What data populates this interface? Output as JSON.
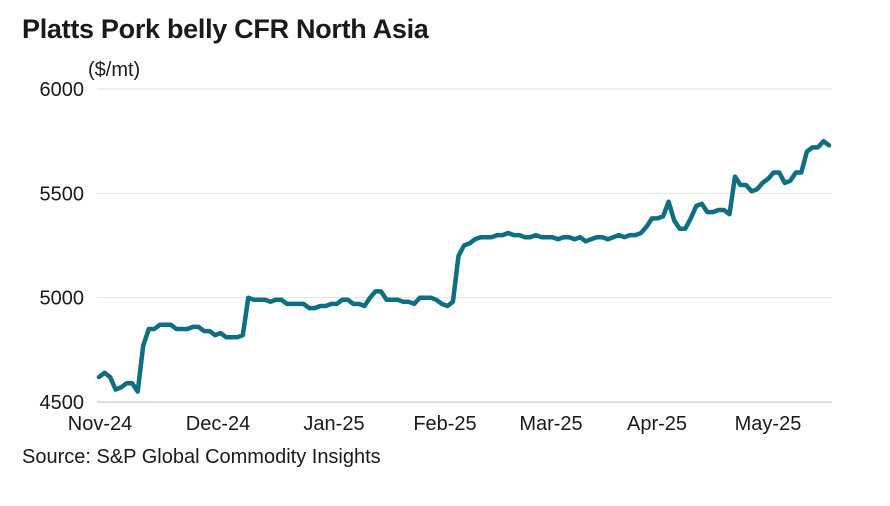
{
  "title": "Platts Pork belly CFR North Asia",
  "source": "Source: S&P Global Commodity Insights",
  "colors": {
    "line": "#0e6e82",
    "grid": "#e3e3e3",
    "axis": "#bdbdbd"
  },
  "chart_data": {
    "type": "line",
    "title": "Platts Pork belly CFR North Asia",
    "ylabel": "($/mt)",
    "xlabel": "",
    "ylim": [
      4500,
      6000
    ],
    "yticks": [
      4500,
      5000,
      5500,
      6000
    ],
    "xticks": [
      "Nov-24",
      "Dec-24",
      "Jan-25",
      "Feb-25",
      "Mar-25",
      "Apr-25",
      "May-25"
    ],
    "grid": true,
    "series": [
      {
        "values": [
          4620,
          4640,
          4620,
          4560,
          4570,
          4590,
          4590,
          4550,
          4770,
          4850,
          4850,
          4870,
          4870,
          4870,
          4850,
          4850,
          4850,
          4860,
          4860,
          4840,
          4840,
          4820,
          4830,
          4810,
          4810,
          4810,
          4820,
          5000,
          4990,
          4990,
          4990,
          4980,
          4990,
          4990,
          4970,
          4970,
          4970,
          4970,
          4950,
          4950,
          4960,
          4960,
          4970,
          4970,
          4990,
          4990,
          4970,
          4970,
          4960,
          5000,
          5030,
          5030,
          4990,
          4990,
          4990,
          4980,
          4980,
          4970,
          5000,
          5000,
          5000,
          4990,
          4970,
          4960,
          4980,
          5200,
          5250,
          5260,
          5280,
          5290,
          5290,
          5290,
          5300,
          5300,
          5310,
          5300,
          5300,
          5290,
          5290,
          5300,
          5290,
          5290,
          5290,
          5280,
          5290,
          5290,
          5280,
          5290,
          5270,
          5280,
          5290,
          5290,
          5280,
          5290,
          5300,
          5290,
          5300,
          5300,
          5310,
          5340,
          5380,
          5380,
          5390,
          5460,
          5370,
          5330,
          5330,
          5380,
          5440,
          5450,
          5410,
          5410,
          5420,
          5420,
          5400,
          5580,
          5540,
          5540,
          5510,
          5520,
          5550,
          5570,
          5600,
          5600,
          5550,
          5560,
          5600,
          5600,
          5700,
          5720,
          5720,
          5750,
          5730
        ]
      }
    ]
  }
}
